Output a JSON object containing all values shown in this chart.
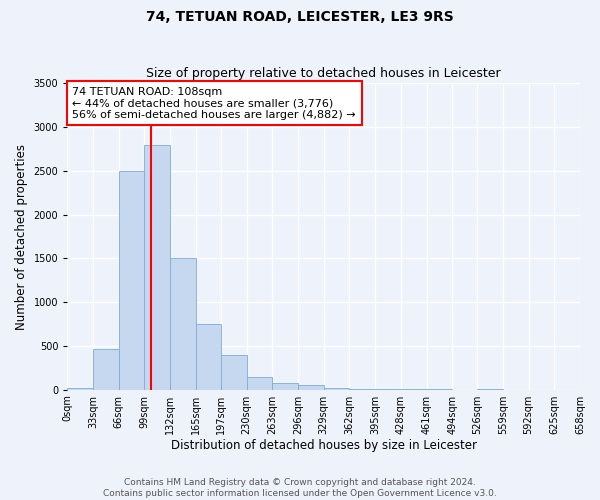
{
  "title": "74, TETUAN ROAD, LEICESTER, LE3 9RS",
  "subtitle": "Size of property relative to detached houses in Leicester",
  "xlabel": "Distribution of detached houses by size in Leicester",
  "ylabel": "Number of detached properties",
  "bin_edges": [
    0,
    33,
    66,
    99,
    132,
    165,
    197,
    230,
    263,
    296,
    329,
    362,
    395,
    428,
    461,
    494,
    526,
    559,
    592,
    625,
    658
  ],
  "bin_heights": [
    20,
    470,
    2500,
    2800,
    1500,
    750,
    400,
    150,
    80,
    50,
    20,
    5,
    5,
    5,
    5,
    0,
    5,
    0,
    0,
    0
  ],
  "bar_color": "#c5d8f0",
  "bar_edge_color": "#7bafd4",
  "property_line_x": 108,
  "property_line_color": "red",
  "annotation_title": "74 TETUAN ROAD: 108sqm",
  "annotation_line1": "← 44% of detached houses are smaller (3,776)",
  "annotation_line2": "56% of semi-detached houses are larger (4,882) →",
  "annotation_box_color": "white",
  "annotation_box_edge_color": "red",
  "ylim": [
    0,
    3500
  ],
  "yticks": [
    0,
    500,
    1000,
    1500,
    2000,
    2500,
    3000,
    3500
  ],
  "xtick_labels": [
    "0sqm",
    "33sqm",
    "66sqm",
    "99sqm",
    "132sqm",
    "165sqm",
    "197sqm",
    "230sqm",
    "263sqm",
    "296sqm",
    "329sqm",
    "362sqm",
    "395sqm",
    "428sqm",
    "461sqm",
    "494sqm",
    "526sqm",
    "559sqm",
    "592sqm",
    "625sqm",
    "658sqm"
  ],
  "footer_line1": "Contains HM Land Registry data © Crown copyright and database right 2024.",
  "footer_line2": "Contains public sector information licensed under the Open Government Licence v3.0.",
  "background_color": "#eef2fb",
  "grid_color": "#ffffff",
  "title_fontsize": 10,
  "subtitle_fontsize": 9,
  "axis_label_fontsize": 8.5,
  "annotation_fontsize": 8,
  "tick_fontsize": 7,
  "footer_fontsize": 6.5
}
